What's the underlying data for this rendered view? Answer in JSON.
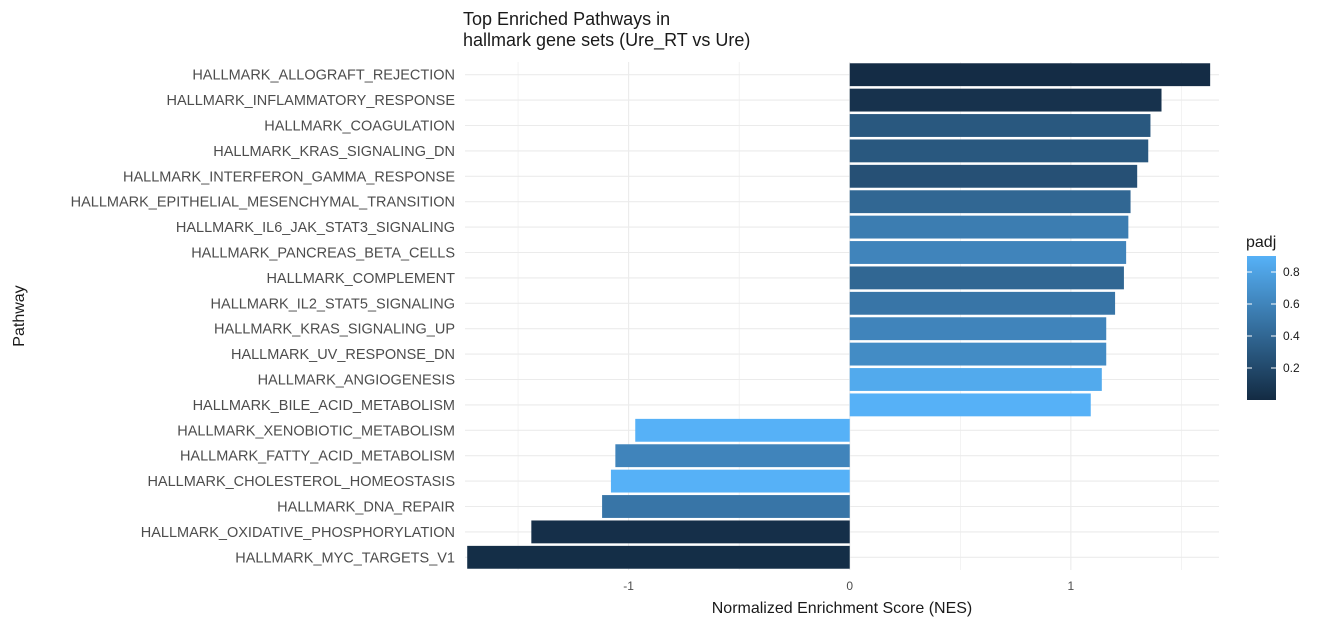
{
  "chart_data": {
    "type": "bar",
    "orientation": "horizontal",
    "title_lines": [
      "Top Enriched Pathways in",
      "hallmark gene sets (Ure_RT vs Ure)"
    ],
    "xlabel": "Normalized Enrichment Score (NES)",
    "ylabel": "Pathway",
    "xlim": [
      -1.74,
      1.67
    ],
    "xticks": [
      -1,
      0,
      1
    ],
    "xtick_labels": [
      "-1",
      "0",
      "1"
    ],
    "grid": true,
    "legend": {
      "title": "padj",
      "placement": "right",
      "type": "colorbar",
      "range": [
        0.0,
        0.9
      ],
      "ticks": [
        0.2,
        0.4,
        0.6,
        0.8
      ],
      "tick_labels": [
        "0.2",
        "0.4",
        "0.6",
        "0.8"
      ],
      "color_low": "#132B43",
      "color_high": "#56B1F7"
    },
    "categories": [
      "HALLMARK_ALLOGRAFT_REJECTION",
      "HALLMARK_INFLAMMATORY_RESPONSE",
      "HALLMARK_COAGULATION",
      "HALLMARK_KRAS_SIGNALING_DN",
      "HALLMARK_INTERFERON_GAMMA_RESPONSE",
      "HALLMARK_EPITHELIAL_MESENCHYMAL_TRANSITION",
      "HALLMARK_IL6_JAK_STAT3_SIGNALING",
      "HALLMARK_PANCREAS_BETA_CELLS",
      "HALLMARK_COMPLEMENT",
      "HALLMARK_IL2_STAT5_SIGNALING",
      "HALLMARK_KRAS_SIGNALING_UP",
      "HALLMARK_UV_RESPONSE_DN",
      "HALLMARK_ANGIOGENESIS",
      "HALLMARK_BILE_ACID_METABOLISM",
      "HALLMARK_XENOBIOTIC_METABOLISM",
      "HALLMARK_FATTY_ACID_METABOLISM",
      "HALLMARK_CHOLESTEROL_HOMEOSTASIS",
      "HALLMARK_DNA_REPAIR",
      "HALLMARK_OXIDATIVE_PHOSPHORYLATION",
      "HALLMARK_MYC_TARGETS_V1"
    ],
    "values": [
      1.63,
      1.41,
      1.36,
      1.35,
      1.3,
      1.27,
      1.26,
      1.25,
      1.24,
      1.2,
      1.16,
      1.16,
      1.14,
      1.09,
      -0.97,
      -1.06,
      -1.08,
      -1.12,
      -1.44,
      -1.73
    ],
    "padj": [
      0.01,
      0.05,
      0.3,
      0.3,
      0.25,
      0.4,
      0.55,
      0.6,
      0.4,
      0.5,
      0.6,
      0.65,
      0.85,
      0.9,
      0.9,
      0.6,
      0.9,
      0.5,
      0.03,
      0.02
    ]
  }
}
